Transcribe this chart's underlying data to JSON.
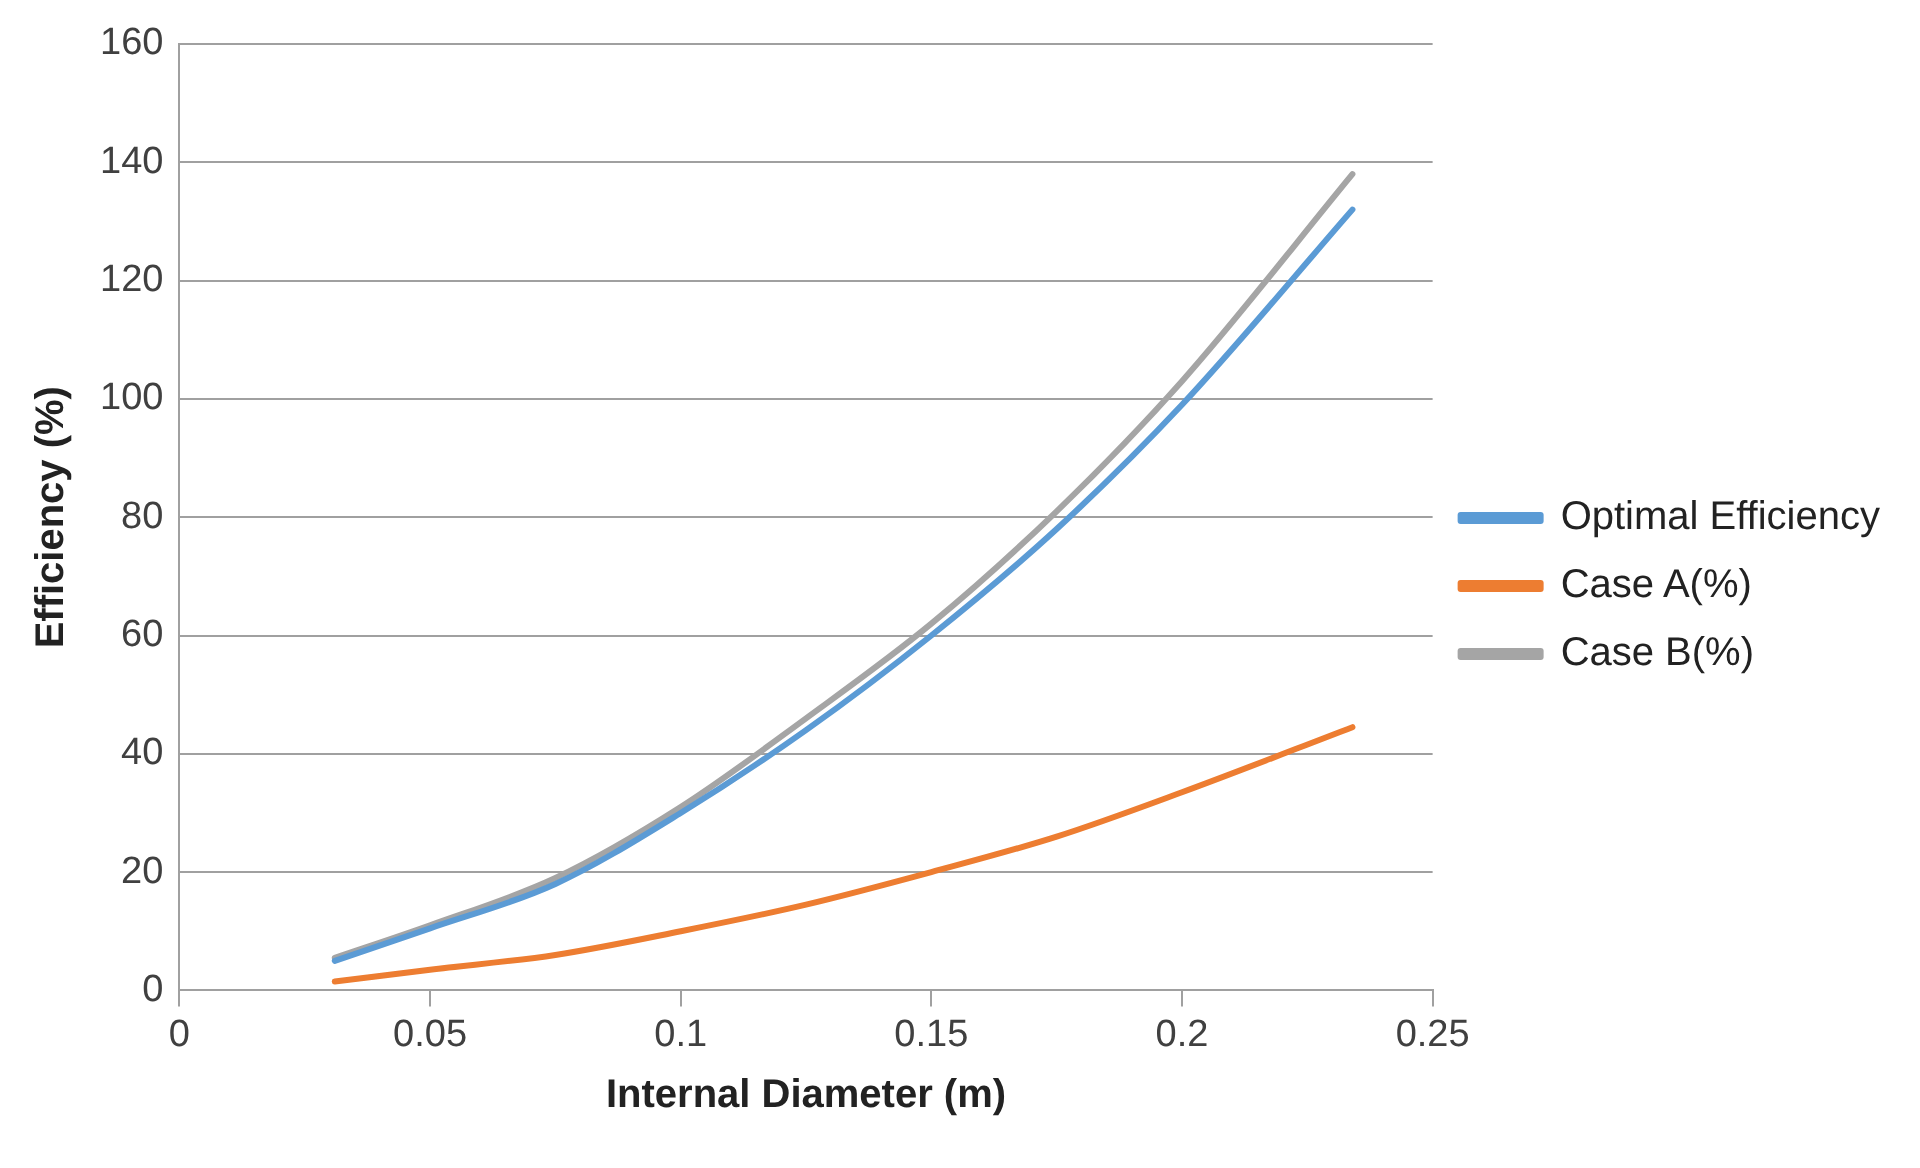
{
  "chart_data": {
    "type": "line",
    "xlabel": "Internal Diameter (m)",
    "ylabel": "Efficiency (%)",
    "x": [
      0.031,
      0.05,
      0.075,
      0.1,
      0.125,
      0.15,
      0.175,
      0.2,
      0.234
    ],
    "series": [
      {
        "name": "Optimal Efficiency",
        "color": "#5b9bd5",
        "values": [
          5,
          10.5,
          18,
          30,
          44,
          60,
          78,
          99,
          132
        ]
      },
      {
        "name": "Case A(%)",
        "color": "#ed7d31",
        "values": [
          1.5,
          3.5,
          6,
          10,
          14.5,
          20,
          26,
          33.5,
          44.5
        ]
      },
      {
        "name": "Case B(%)",
        "color": "#a5a5a5",
        "values": [
          5.5,
          11,
          19,
          31,
          46,
          62,
          81,
          103,
          138
        ]
      }
    ],
    "xlim": [
      0,
      0.25
    ],
    "xticks": [
      0,
      0.05,
      0.1,
      0.15,
      0.2,
      0.25
    ],
    "ylim": [
      0,
      160
    ],
    "yticks": [
      0,
      20,
      40,
      60,
      80,
      100,
      120,
      140,
      160
    ],
    "grid": "y",
    "legend": "right",
    "marker": "none",
    "line_style": "solid"
  }
}
